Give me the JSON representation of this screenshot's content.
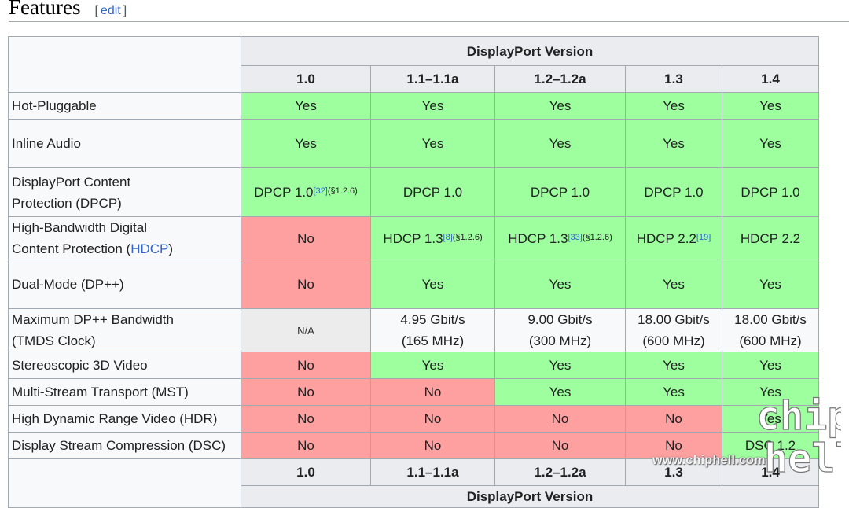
{
  "section": {
    "title": "Features",
    "edit_open": "[",
    "edit_label": "edit",
    "edit_close": "]"
  },
  "table": {
    "group_header": "DisplayPort Version",
    "versions": [
      "1.0",
      "1.1–1.1a",
      "1.2–1.2a",
      "1.3",
      "1.4"
    ],
    "rows": [
      {
        "label": "Hot-Pluggable",
        "cells": [
          {
            "t": "Yes",
            "s": "yes"
          },
          {
            "t": "Yes",
            "s": "yes"
          },
          {
            "t": "Yes",
            "s": "yes"
          },
          {
            "t": "Yes",
            "s": "yes"
          },
          {
            "t": "Yes",
            "s": "yes"
          }
        ]
      },
      {
        "label": "Inline Audio",
        "cells": [
          {
            "t": "Yes",
            "s": "yes"
          },
          {
            "t": "Yes",
            "s": "yes"
          },
          {
            "t": "Yes",
            "s": "yes"
          },
          {
            "t": "Yes",
            "s": "yes"
          },
          {
            "t": "Yes",
            "s": "yes"
          }
        ]
      },
      {
        "label_lines": [
          "DisplayPort Content",
          "Protection (DPCP)"
        ],
        "cells": [
          {
            "t": "DPCP 1.0",
            "s": "yes",
            "ref": "[32]",
            "sec": "(§1.2.6)"
          },
          {
            "t": "DPCP 1.0",
            "s": "yes"
          },
          {
            "t": "DPCP 1.0",
            "s": "yes"
          },
          {
            "t": "DPCP 1.0",
            "s": "yes"
          },
          {
            "t": "DPCP 1.0",
            "s": "yes"
          }
        ]
      },
      {
        "label_lines": [
          "High-Bandwidth Digital",
          "Content Protection ("
        ],
        "label_link": "HDCP",
        "label_tail": ")",
        "cells": [
          {
            "t": "No",
            "s": "no"
          },
          {
            "t": "HDCP 1.3",
            "s": "yes",
            "ref": "[8]",
            "sec": "(§1.2.6)"
          },
          {
            "t": "HDCP 1.3",
            "s": "yes",
            "ref": "[33]",
            "sec": "(§1.2.6)"
          },
          {
            "t": "HDCP 2.2",
            "s": "yes",
            "ref": "[19]"
          },
          {
            "t": "HDCP 2.2",
            "s": "yes"
          }
        ]
      },
      {
        "label": "Dual-Mode (DP++)",
        "cells": [
          {
            "t": "No",
            "s": "no"
          },
          {
            "t": "Yes",
            "s": "yes"
          },
          {
            "t": "Yes",
            "s": "yes"
          },
          {
            "t": "Yes",
            "s": "yes"
          },
          {
            "t": "Yes",
            "s": "yes"
          }
        ]
      },
      {
        "label_lines": [
          "Maximum DP++ Bandwidth",
          "(TMDS Clock)"
        ],
        "cells": [
          {
            "t": "N/A",
            "s": "na"
          },
          {
            "lines": [
              "4.95 Gbit/s",
              "(165 MHz)"
            ],
            "s": "plain"
          },
          {
            "lines": [
              "9.00 Gbit/s",
              "(300 MHz)"
            ],
            "s": "plain"
          },
          {
            "lines": [
              "18.00 Gbit/s",
              "(600 MHz)"
            ],
            "s": "plain"
          },
          {
            "lines": [
              "18.00 Gbit/s",
              "(600 MHz)"
            ],
            "s": "plain"
          }
        ]
      },
      {
        "label": "Stereoscopic 3D Video",
        "cells": [
          {
            "t": "No",
            "s": "no"
          },
          {
            "t": "Yes",
            "s": "yes"
          },
          {
            "t": "Yes",
            "s": "yes"
          },
          {
            "t": "Yes",
            "s": "yes"
          },
          {
            "t": "Yes",
            "s": "yes"
          }
        ]
      },
      {
        "label": "Multi-Stream Transport (MST)",
        "cells": [
          {
            "t": "No",
            "s": "no"
          },
          {
            "t": "No",
            "s": "no"
          },
          {
            "t": "Yes",
            "s": "yes"
          },
          {
            "t": "Yes",
            "s": "yes"
          },
          {
            "t": "Yes",
            "s": "yes"
          }
        ]
      },
      {
        "label": "High Dynamic Range Video (HDR)",
        "cells": [
          {
            "t": "No",
            "s": "no"
          },
          {
            "t": "No",
            "s": "no"
          },
          {
            "t": "No",
            "s": "no"
          },
          {
            "t": "No",
            "s": "no"
          },
          {
            "t": "Yes",
            "s": "yes"
          }
        ]
      },
      {
        "label": "Display Stream Compression (DSC)",
        "cells": [
          {
            "t": "No",
            "s": "no"
          },
          {
            "t": "No",
            "s": "no"
          },
          {
            "t": "No",
            "s": "no"
          },
          {
            "t": "No",
            "s": "no"
          },
          {
            "t": "DSC 1.2",
            "s": "yes"
          }
        ]
      }
    ]
  },
  "watermark": {
    "url": "www.chiphell.com",
    "logo_top": "chip",
    "logo_bottom": "hell"
  },
  "colors": {
    "yes": "#9eff9f",
    "no": "#ffa0a0",
    "na": "#ececec",
    "header": "#eaecf0",
    "link": "#3366cc"
  }
}
